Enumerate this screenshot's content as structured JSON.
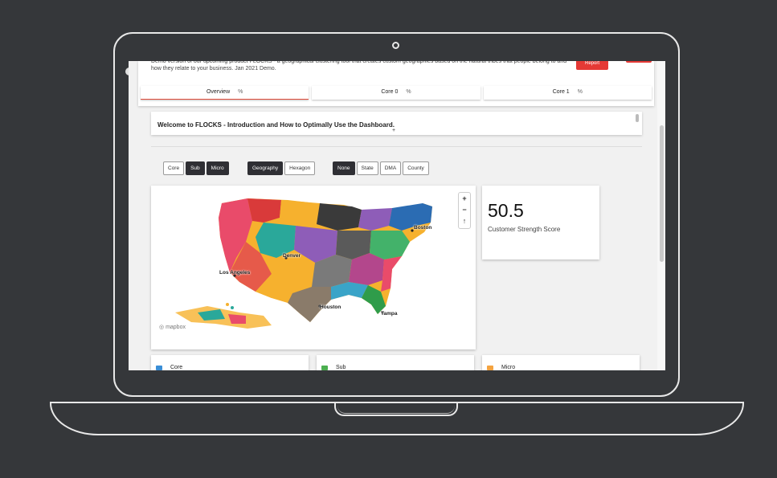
{
  "header": {
    "description": "Demo version of our upcoming product FLOCKS - a geographical clustering tool that creates custom geographies based on the natural tribes that people belong to and how they relate to your business. Jan 2021 Demo.",
    "report_label": "Report"
  },
  "tabs": [
    {
      "label": "Overview",
      "suffix": "%"
    },
    {
      "label": "Core 0",
      "suffix": "%"
    },
    {
      "label": "Core 1",
      "suffix": "%"
    }
  ],
  "intro": {
    "title": "Welcome to FLOCKS - Introduction and How to Optimally Use the Dashboard.",
    "expand": "+"
  },
  "toggle_groups": {
    "level": [
      "Core",
      "Sub",
      "Micro"
    ],
    "level_selected": "Sub",
    "shape": [
      "Geography",
      "Hexagon"
    ],
    "shape_selected": "Geography",
    "boundary": [
      "None",
      "State",
      "DMA",
      "County"
    ],
    "boundary_selected": "None"
  },
  "map": {
    "cities": [
      "Boston",
      "Denver",
      "Los Angeles",
      "Houston",
      "Tampa"
    ],
    "attribution": "mapbox",
    "zoom_in": "+",
    "zoom_out": "−",
    "reset": "↑"
  },
  "score": {
    "value": "50.5",
    "label": "Customer Strength Score"
  },
  "bottom_cards": [
    {
      "label": "Core",
      "color": "#3a8ed6"
    },
    {
      "label": "Sub",
      "color": "#4caf50"
    },
    {
      "label": "Micro",
      "color": "#f4a340"
    }
  ]
}
